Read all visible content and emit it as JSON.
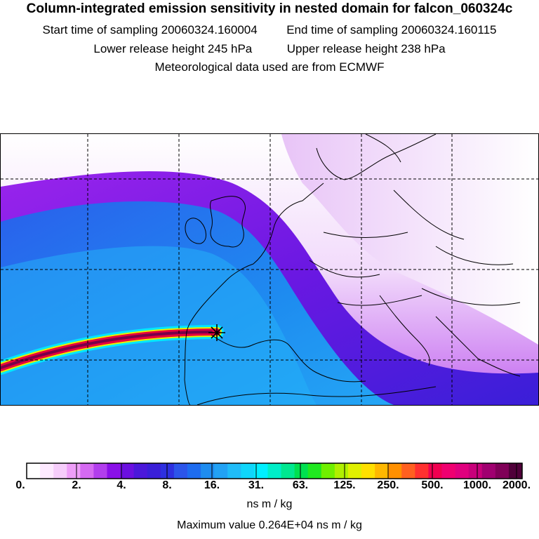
{
  "header": {
    "title": "Column-integrated emission sensitivity in nested domain for falcon_060324c",
    "start_label": "Start time of sampling 20060324.160004",
    "end_label": "End time of sampling 20060324.160115",
    "lower_label": "Lower release height  245 hPa",
    "upper_label": "Upper release height  238 hPa",
    "met_label": "Meteorological data used are from ECMWF"
  },
  "map": {
    "release_marker": "release-point-star",
    "colors": {
      "white": "#ffffff",
      "light_purple": "#e6c8f5",
      "purple": "#a020f0",
      "dark_blue": "#3a1fd8",
      "blue": "#1e8cf0",
      "light_blue": "#24aaf6",
      "cyan": "#00e4ff",
      "yellow": "#f0f000",
      "red": "#e8003c",
      "maroon": "#6a0040"
    }
  },
  "legend": {
    "tick_labels": [
      "0.",
      "2.",
      "4.",
      "8.",
      "16.",
      "31.",
      "63.",
      "125.",
      "250.",
      "500.",
      "1000.",
      "2000."
    ],
    "unit": "ns m / kg",
    "max_label": "Maximum value  0.264E+04 ns m / kg",
    "colors": [
      "#ffffff",
      "#fde9ff",
      "#f6cdfb",
      "#ee9ef8",
      "#d56af2",
      "#b23eed",
      "#8a10e8",
      "#6b10e0",
      "#4b18da",
      "#3a1fd8",
      "#2e30e0",
      "#2c55ea",
      "#1e6cf0",
      "#1e8cf0",
      "#22a2f4",
      "#20bcf8",
      "#10d6fb",
      "#00f0ff",
      "#00eec8",
      "#00e890",
      "#00e050",
      "#20e820",
      "#70f000",
      "#b0f000",
      "#e0f000",
      "#ffe000",
      "#ffb800",
      "#ff9000",
      "#ff6020",
      "#ff3030",
      "#f00050",
      "#f00070",
      "#e0007e",
      "#c8007a",
      "#a00070",
      "#800058",
      "#50003a"
    ]
  }
}
